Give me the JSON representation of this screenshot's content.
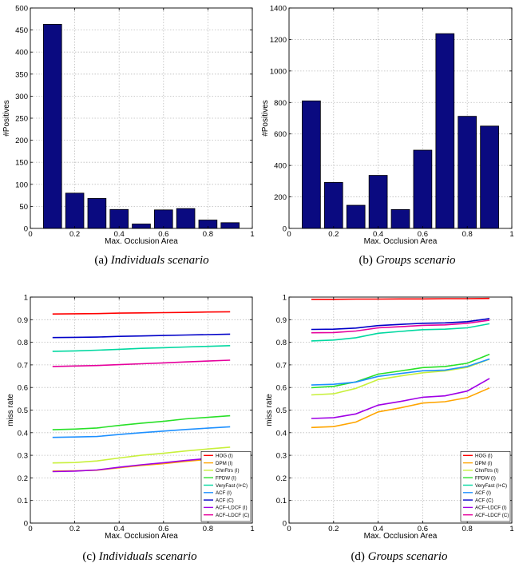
{
  "captions": [
    {
      "label": "(a)",
      "text": "Individuals scenario"
    },
    {
      "label": "(b)",
      "text": "Groups scenario"
    },
    {
      "label": "(c)",
      "text": "Individuals scenario"
    },
    {
      "label": "(d)",
      "text": "Groups scenario"
    }
  ],
  "colors": {
    "bar": "#0a0a80",
    "axis": "#000000",
    "grid": "#bcbcbc"
  },
  "legend_labels": [
    "HOG (I)",
    "DPM (I)",
    "ChnFtrs (I)",
    "FPDW (I)",
    "VeryFast (I+C)",
    "ACF (I)",
    "ACF (C)",
    "ACF–LDCF (I)",
    "ACF–LDCF (C)"
  ],
  "chart_data": [
    {
      "type": "bar",
      "xlabel": "Max. Occlusion Area",
      "ylabel": "#Positives",
      "x": [
        0.1,
        0.2,
        0.3,
        0.4,
        0.5,
        0.6,
        0.7,
        0.8,
        0.9
      ],
      "values": [
        463,
        80,
        68,
        43,
        10,
        42,
        45,
        19,
        13
      ],
      "xlim": [
        0,
        1
      ],
      "ylim": [
        0,
        500
      ],
      "xticks": [
        "0",
        "0.2",
        "0.4",
        "0.6",
        "0.8",
        "1"
      ],
      "yticks": [
        "0",
        "50",
        "100",
        "150",
        "200",
        "250",
        "300",
        "350",
        "400",
        "450",
        "500"
      ],
      "grid": true
    },
    {
      "type": "bar",
      "xlabel": "Max. Occlusion Area",
      "ylabel": "#Positives",
      "x": [
        0.1,
        0.2,
        0.3,
        0.4,
        0.5,
        0.6,
        0.7,
        0.8,
        0.9
      ],
      "values": [
        810,
        292,
        147,
        337,
        120,
        497,
        1237,
        712,
        650
      ],
      "xlim": [
        0,
        1
      ],
      "ylim": [
        0,
        1400
      ],
      "xticks": [
        "0",
        "0.2",
        "0.4",
        "0.6",
        "0.8",
        "1"
      ],
      "yticks": [
        "0",
        "200",
        "400",
        "600",
        "800",
        "1000",
        "1200",
        "1400"
      ],
      "grid": true
    },
    {
      "type": "line",
      "xlabel": "Max. Occlusion Area",
      "ylabel": "miss rate",
      "x": [
        0.1,
        0.2,
        0.3,
        0.4,
        0.5,
        0.6,
        0.7,
        0.8,
        0.9
      ],
      "xlim": [
        0,
        1
      ],
      "ylim": [
        0,
        1
      ],
      "xticks": [
        "0",
        "0.2",
        "0.4",
        "0.6",
        "0.8",
        "1"
      ],
      "yticks": [
        "0",
        "0.1",
        "0.2",
        "0.3",
        "0.4",
        "0.5",
        "0.6",
        "0.7",
        "0.8",
        "0.9",
        "1"
      ],
      "grid": true,
      "legend_position": "bottom-right",
      "series": [
        {
          "name": "HOG (I)",
          "color": "#ff0000",
          "values": [
            0.925,
            0.926,
            0.927,
            0.929,
            0.93,
            0.931,
            0.932,
            0.934,
            0.935
          ]
        },
        {
          "name": "DPM (I)",
          "color": "#ffa500",
          "values": [
            0.23,
            0.231,
            0.234,
            0.245,
            0.255,
            0.263,
            0.273,
            0.282,
            0.292
          ]
        },
        {
          "name": "ChnFtrs (I)",
          "color": "#c8f03c",
          "values": [
            0.266,
            0.268,
            0.275,
            0.288,
            0.3,
            0.309,
            0.319,
            0.328,
            0.336
          ]
        },
        {
          "name": "FPDW (I)",
          "color": "#28e028",
          "values": [
            0.413,
            0.416,
            0.421,
            0.432,
            0.442,
            0.45,
            0.461,
            0.468,
            0.475
          ]
        },
        {
          "name": "VeryFast (I+C)",
          "color": "#00d8a0",
          "values": [
            0.76,
            0.762,
            0.765,
            0.769,
            0.773,
            0.776,
            0.779,
            0.782,
            0.785
          ]
        },
        {
          "name": "ACF (I)",
          "color": "#1e90ff",
          "values": [
            0.379,
            0.381,
            0.383,
            0.392,
            0.4,
            0.407,
            0.414,
            0.42,
            0.426
          ]
        },
        {
          "name": "ACF (C)",
          "color": "#0000c8",
          "values": [
            0.821,
            0.822,
            0.823,
            0.826,
            0.828,
            0.83,
            0.832,
            0.834,
            0.836
          ]
        },
        {
          "name": "ACF–LDCF (I)",
          "color": "#a000e6",
          "values": [
            0.228,
            0.23,
            0.235,
            0.247,
            0.258,
            0.267,
            0.277,
            0.286,
            0.295
          ]
        },
        {
          "name": "ACF–LDCF (C)",
          "color": "#e6009c",
          "values": [
            0.693,
            0.695,
            0.697,
            0.701,
            0.705,
            0.709,
            0.713,
            0.717,
            0.721
          ]
        }
      ]
    },
    {
      "type": "line",
      "xlabel": "Max. Occlusion Area",
      "ylabel": "miss rate",
      "x": [
        0.1,
        0.2,
        0.3,
        0.4,
        0.5,
        0.6,
        0.7,
        0.8,
        0.9
      ],
      "xlim": [
        0,
        1
      ],
      "ylim": [
        0,
        1
      ],
      "xticks": [
        "0",
        "0.2",
        "0.4",
        "0.6",
        "0.8",
        "1"
      ],
      "yticks": [
        "0",
        "0.1",
        "0.2",
        "0.3",
        "0.4",
        "0.5",
        "0.6",
        "0.7",
        "0.8",
        "0.9",
        "1"
      ],
      "grid": true,
      "legend_position": "bottom-right",
      "series": [
        {
          "name": "HOG (I)",
          "color": "#ff0000",
          "values": [
            0.99,
            0.99,
            0.991,
            0.991,
            0.992,
            0.992,
            0.993,
            0.993,
            0.994
          ]
        },
        {
          "name": "DPM (I)",
          "color": "#ffa500",
          "values": [
            0.423,
            0.427,
            0.447,
            0.492,
            0.51,
            0.531,
            0.537,
            0.555,
            0.598
          ]
        },
        {
          "name": "ChnFtrs (I)",
          "color": "#c8f03c",
          "values": [
            0.567,
            0.572,
            0.596,
            0.635,
            0.651,
            0.665,
            0.673,
            0.689,
            0.725
          ]
        },
        {
          "name": "FPDW (I)",
          "color": "#28e028",
          "values": [
            0.599,
            0.605,
            0.625,
            0.659,
            0.673,
            0.688,
            0.693,
            0.707,
            0.747
          ]
        },
        {
          "name": "VeryFast (I+C)",
          "color": "#00d8a0",
          "values": [
            0.806,
            0.81,
            0.82,
            0.84,
            0.848,
            0.856,
            0.858,
            0.864,
            0.882
          ]
        },
        {
          "name": "ACF (I)",
          "color": "#1e90ff",
          "values": [
            0.611,
            0.614,
            0.624,
            0.649,
            0.662,
            0.674,
            0.677,
            0.693,
            0.726
          ]
        },
        {
          "name": "ACF (C)",
          "color": "#0000c8",
          "values": [
            0.857,
            0.858,
            0.863,
            0.874,
            0.879,
            0.884,
            0.886,
            0.891,
            0.905
          ]
        },
        {
          "name": "ACF–LDCF (I)",
          "color": "#a000e6",
          "values": [
            0.463,
            0.466,
            0.483,
            0.522,
            0.538,
            0.557,
            0.563,
            0.584,
            0.64
          ]
        },
        {
          "name": "ACF–LDCF (C)",
          "color": "#e6009c",
          "values": [
            0.842,
            0.843,
            0.85,
            0.864,
            0.869,
            0.875,
            0.877,
            0.884,
            0.898
          ]
        }
      ]
    }
  ]
}
